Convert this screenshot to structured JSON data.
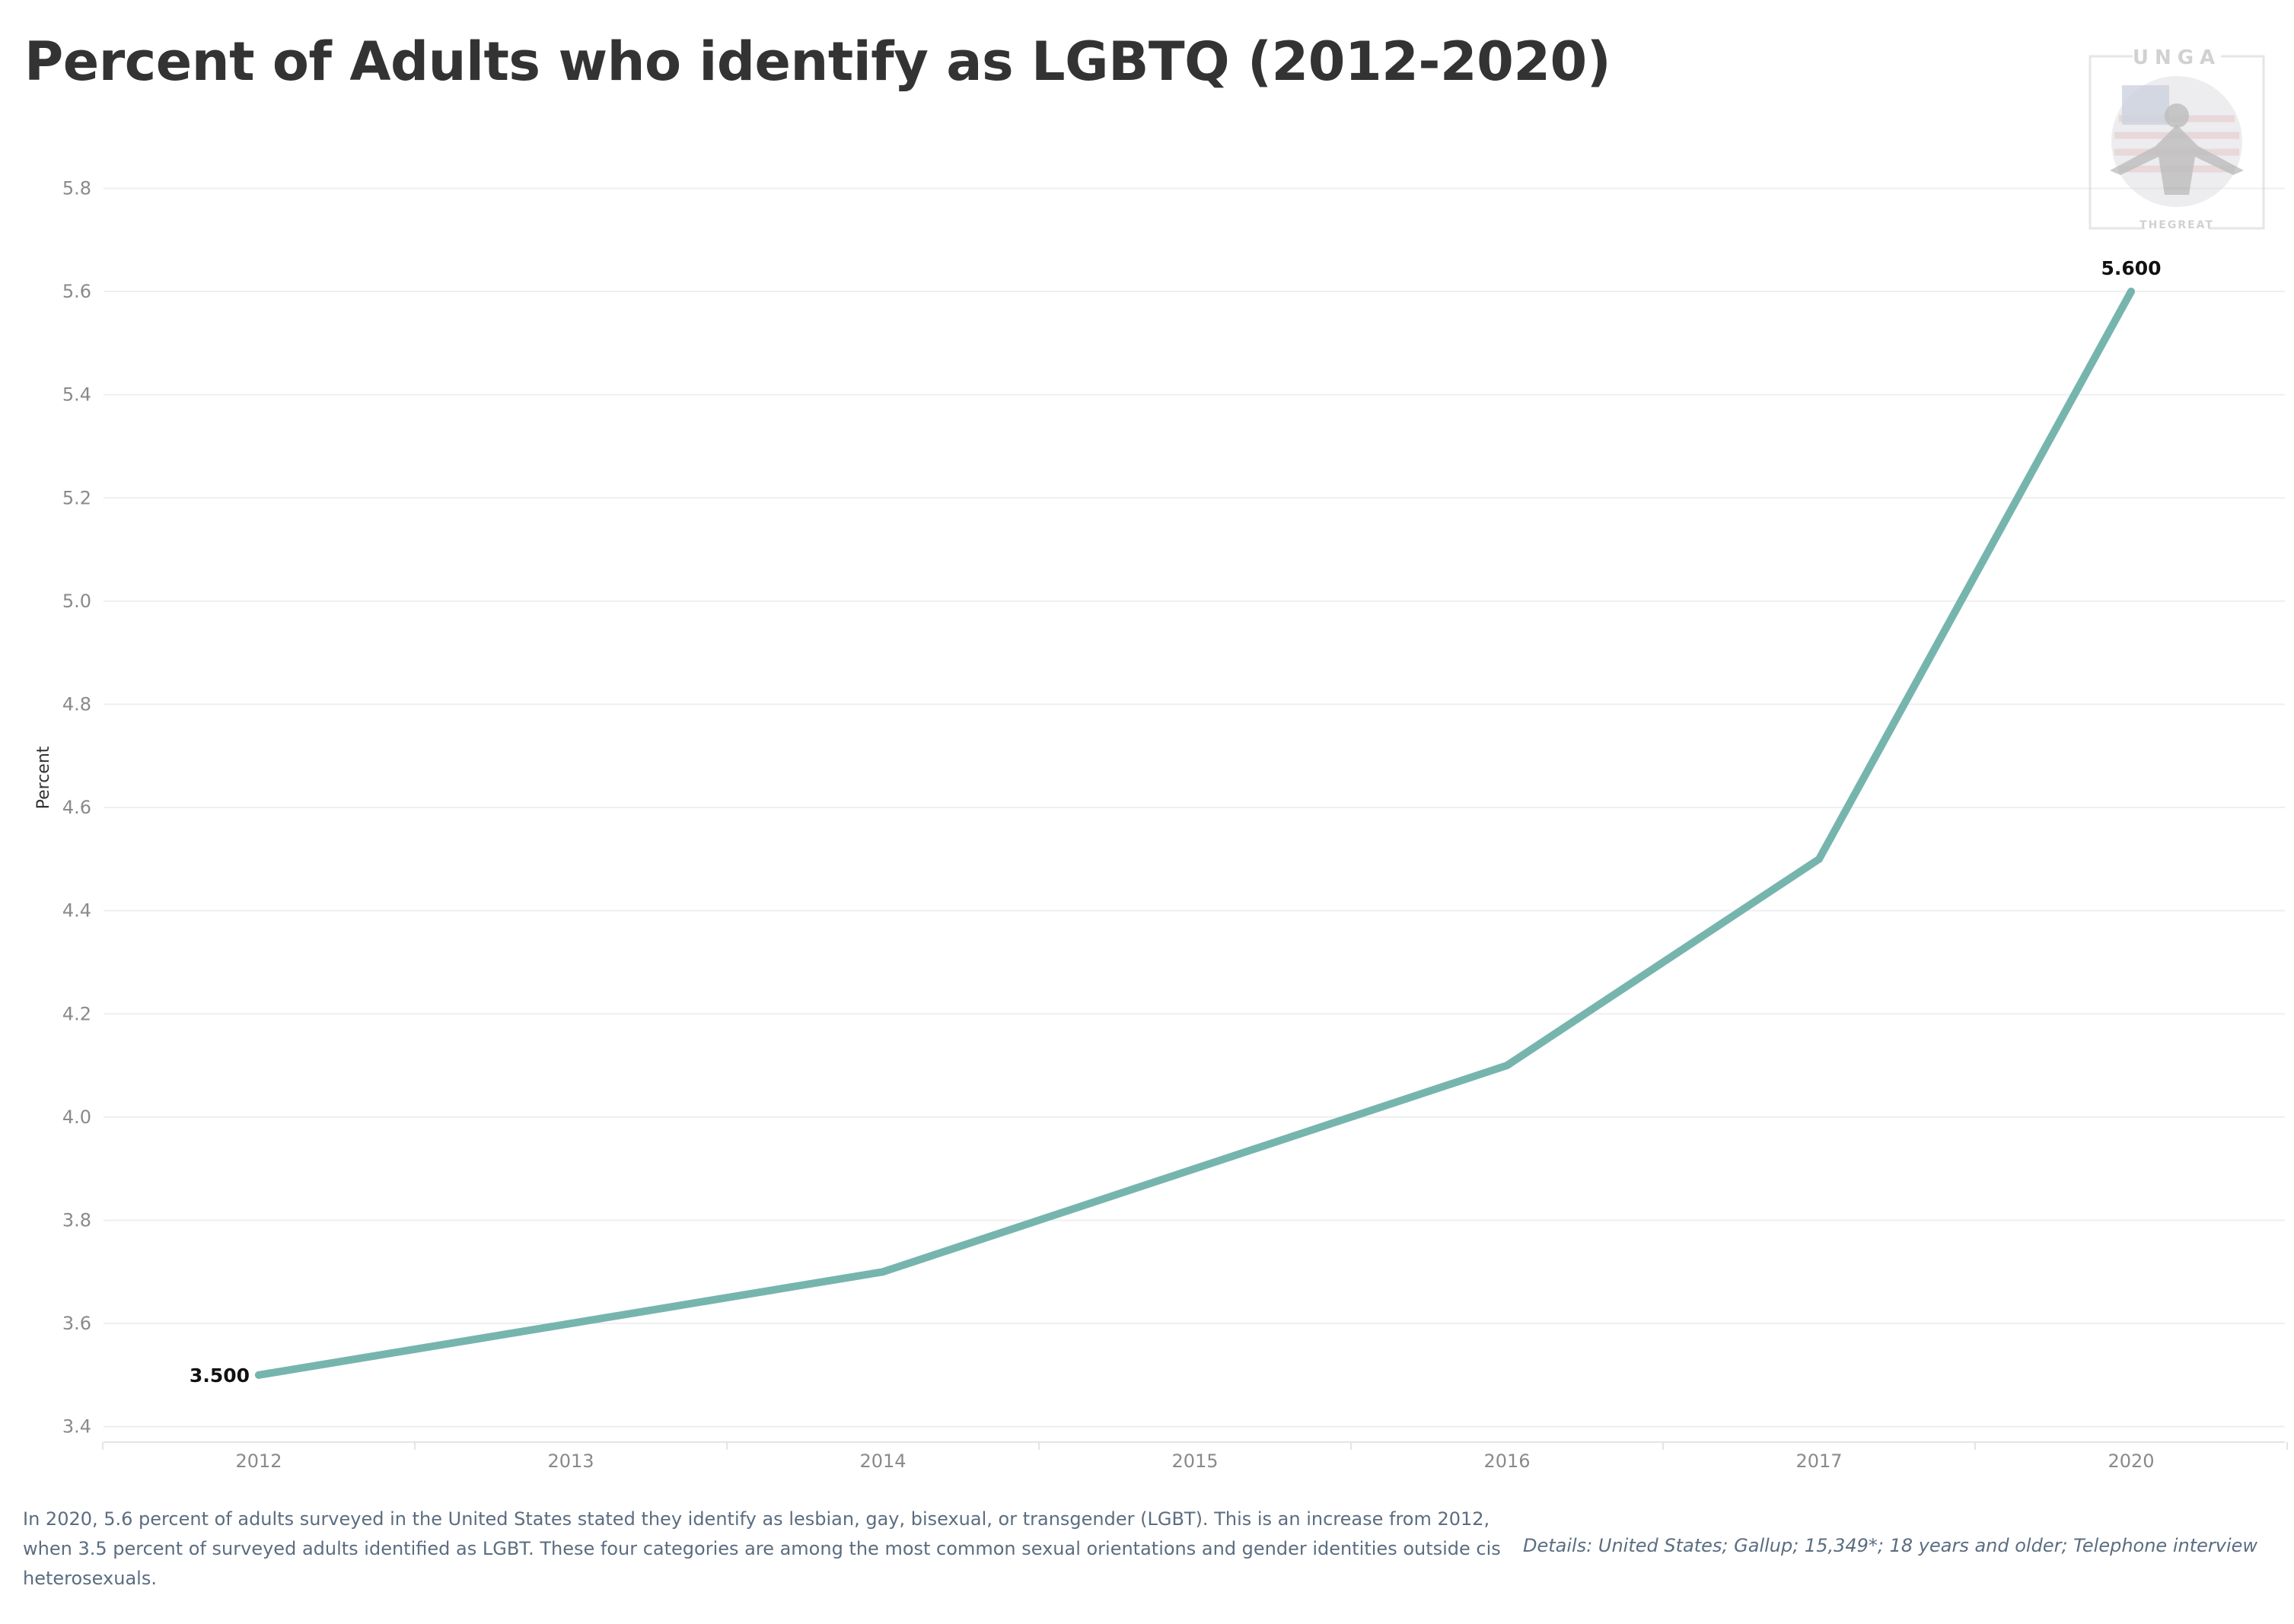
{
  "chart_data": {
    "type": "line",
    "title": "Percent of Adults who identify as LGBTQ (2012-2020)",
    "xlabel": "",
    "ylabel": "Percent",
    "x": [
      2012,
      2013,
      2014,
      2015,
      2016,
      2017,
      2020
    ],
    "x_tick_labels": [
      "2012",
      "2013",
      "2014",
      "2015",
      "2016",
      "2017",
      "2020"
    ],
    "series": [
      {
        "values": [
          3.5,
          3.6,
          3.7,
          3.9,
          4.1,
          4.5,
          5.6
        ],
        "color": "#76b5ad"
      }
    ],
    "ylim": [
      3.37,
      5.87
    ],
    "y_ticks": [
      3.4,
      3.6,
      3.8,
      4.0,
      4.2,
      4.4,
      4.6,
      4.8,
      5.0,
      5.2,
      5.4,
      5.6,
      5.8
    ],
    "y_tick_labels": [
      "3.4",
      "3.6",
      "3.8",
      "4.0",
      "4.2",
      "4.4",
      "4.6",
      "4.8",
      "5.0",
      "5.2",
      "5.4",
      "5.6",
      "5.8"
    ],
    "data_labels": [
      {
        "index": 0,
        "text": "3.500"
      },
      {
        "index": 6,
        "text": "5.600"
      }
    ],
    "grid": true,
    "legend": "none"
  },
  "watermark": {
    "top_text": "UNGA",
    "bottom_text": "THEGREAT"
  },
  "footnote": "In 2020, 5.6 percent of adults surveyed in the United States stated they identify as lesbian, gay, bisexual, or transgender (LGBT). This is an increase from 2012, when 3.5 percent of surveyed adults identified as LGBT. These four categories are among the most common sexual orientations and gender identities outside cis heterosexuals.",
  "source": "Details: United States; Gallup; 15,349*; 18 years and older; Telephone interview"
}
